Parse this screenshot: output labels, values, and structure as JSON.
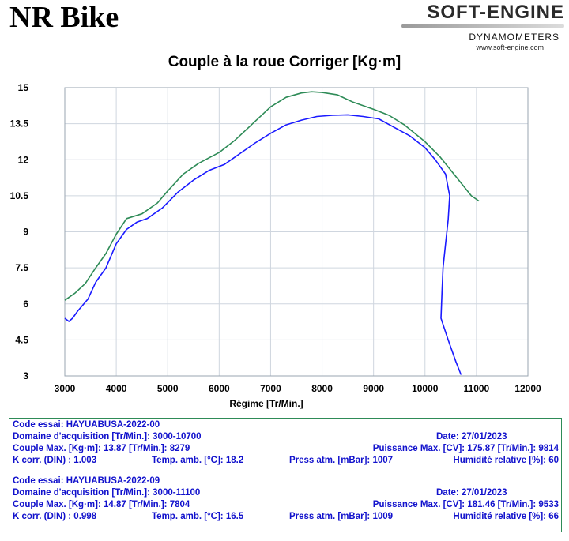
{
  "header": {
    "brand": "NR Bike",
    "logo_name": "SOFT-ENGINE",
    "logo_sub": "DYNAMOMETERS",
    "logo_url": "www.soft-engine.com"
  },
  "chart_data": {
    "type": "line",
    "title": "Couple à la roue Corriger [Kg·m]",
    "xlabel": "Régime [Tr/Min.]",
    "ylabel": "",
    "xlim": [
      3000,
      12000
    ],
    "ylim": [
      3,
      15
    ],
    "xticks": [
      "3000",
      "4000",
      "5000",
      "6000",
      "7000",
      "8000",
      "9000",
      "10000",
      "11000",
      "12000"
    ],
    "yticks": [
      "3",
      "4.5",
      "6",
      "7.5",
      "9",
      "10.5",
      "12",
      "13.5",
      "15"
    ],
    "grid": true,
    "legend": "none",
    "series": [
      {
        "color": "#2e8b57",
        "points": [
          [
            3000,
            6.15
          ],
          [
            3200,
            6.45
          ],
          [
            3400,
            6.85
          ],
          [
            3600,
            7.5
          ],
          [
            3800,
            8.1
          ],
          [
            4000,
            8.9
          ],
          [
            4200,
            9.55
          ],
          [
            4500,
            9.75
          ],
          [
            4800,
            10.2
          ],
          [
            5000,
            10.7
          ],
          [
            5300,
            11.4
          ],
          [
            5600,
            11.85
          ],
          [
            6000,
            12.3
          ],
          [
            6300,
            12.8
          ],
          [
            6600,
            13.4
          ],
          [
            7000,
            14.2
          ],
          [
            7300,
            14.6
          ],
          [
            7600,
            14.78
          ],
          [
            7800,
            14.83
          ],
          [
            8000,
            14.8
          ],
          [
            8300,
            14.7
          ],
          [
            8600,
            14.4
          ],
          [
            9000,
            14.1
          ],
          [
            9300,
            13.85
          ],
          [
            9600,
            13.45
          ],
          [
            10000,
            12.75
          ],
          [
            10300,
            12.1
          ],
          [
            10600,
            11.3
          ],
          [
            10900,
            10.5
          ],
          [
            11050,
            10.28
          ]
        ]
      },
      {
        "color": "#1a1aff",
        "points": [
          [
            3000,
            5.4
          ],
          [
            3080,
            5.27
          ],
          [
            3150,
            5.4
          ],
          [
            3250,
            5.7
          ],
          [
            3450,
            6.2
          ],
          [
            3600,
            6.9
          ],
          [
            3800,
            7.5
          ],
          [
            4000,
            8.5
          ],
          [
            4200,
            9.1
          ],
          [
            4400,
            9.4
          ],
          [
            4600,
            9.55
          ],
          [
            4900,
            10.0
          ],
          [
            5200,
            10.65
          ],
          [
            5500,
            11.15
          ],
          [
            5800,
            11.55
          ],
          [
            6100,
            11.8
          ],
          [
            6400,
            12.25
          ],
          [
            6700,
            12.7
          ],
          [
            7000,
            13.1
          ],
          [
            7300,
            13.45
          ],
          [
            7600,
            13.65
          ],
          [
            7900,
            13.8
          ],
          [
            8200,
            13.85
          ],
          [
            8500,
            13.87
          ],
          [
            8800,
            13.8
          ],
          [
            9100,
            13.7
          ],
          [
            9400,
            13.35
          ],
          [
            9700,
            13.0
          ],
          [
            10000,
            12.5
          ],
          [
            10200,
            12.0
          ],
          [
            10400,
            11.4
          ],
          [
            10480,
            10.5
          ],
          [
            10450,
            9.5
          ],
          [
            10400,
            8.5
          ],
          [
            10350,
            7.5
          ],
          [
            10330,
            6.5
          ],
          [
            10310,
            5.4
          ],
          [
            10450,
            4.5
          ],
          [
            10600,
            3.6
          ],
          [
            10700,
            3.05
          ]
        ]
      }
    ]
  },
  "runs": [
    {
      "code": "Code essai: HAYUABUSA-2022-00",
      "domain": "Domaine d'acquisition [Tr/Min.]: 3000-10700",
      "date": "Date: 27/01/2023",
      "couple": "Couple Max. [Kg·m]: 13.87   [Tr/Min.]: 8279",
      "puissance": "Puissance Max. [CV]: 175.87   [Tr/Min.]: 9814",
      "kcorr": "K corr. (DIN) : 1.003",
      "temp": "Temp. amb. [°C]: 18.2",
      "press": "Press atm. [mBar]: 1007",
      "hum": "Humidité relative [%]: 60"
    },
    {
      "code": "Code essai: HAYUABUSA-2022-09",
      "domain": "Domaine d'acquisition [Tr/Min.]: 3000-11100",
      "date": "Date: 27/01/2023",
      "couple": "Couple Max. [Kg·m]: 14.87   [Tr/Min.]: 7804",
      "puissance": "Puissance Max. [CV]: 181.46   [Tr/Min.]: 9533",
      "kcorr": "K corr. (DIN) : 0.998",
      "temp": "Temp. amb. [°C]: 16.5",
      "press": "Press atm. [mBar]: 1009",
      "hum": "Humidité relative [%]: 66"
    }
  ]
}
